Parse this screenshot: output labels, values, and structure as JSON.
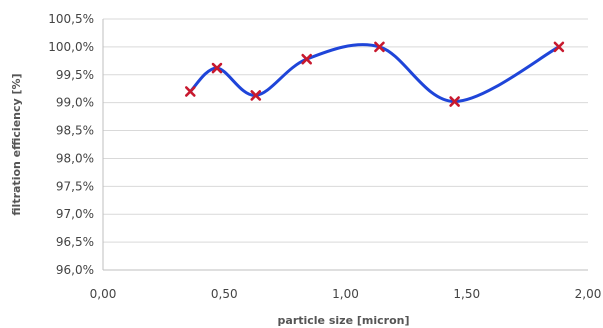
{
  "chart_data": {
    "type": "line",
    "xlabel": "particle size [micron]",
    "ylabel": "filtration efficiency [%]",
    "xlim": [
      0,
      2
    ],
    "ylim": [
      96.0,
      100.5
    ],
    "x_ticks": [
      "0,00",
      "0,50",
      "1,00",
      "1,50",
      "2,00"
    ],
    "y_ticks": [
      "96,0%",
      "96,5%",
      "97,0%",
      "97,5%",
      "98,0%",
      "98,5%",
      "99,0%",
      "99,5%",
      "100,0%",
      "100,5%"
    ],
    "grid": "horizontal",
    "smooth": true,
    "series": [
      {
        "x": [
          0.36,
          0.47,
          0.63,
          0.84,
          1.14,
          1.45,
          1.88
        ],
        "y": [
          99.2,
          99.62,
          99.13,
          99.78,
          100.0,
          99.02,
          100.0
        ],
        "line_color": "#1f45d9",
        "marker_color": "#c8192e",
        "marker": "x"
      }
    ]
  }
}
